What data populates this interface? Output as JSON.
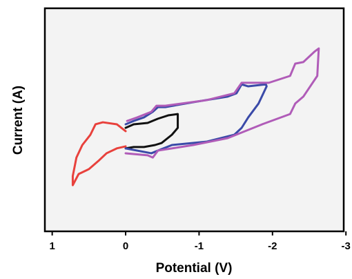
{
  "chart_data": {
    "type": "line",
    "xlabel": "Potential (V)",
    "ylabel": "Current (A)",
    "xlim": [
      1.1,
      -2.97
    ],
    "xticks": [
      1,
      0,
      -1,
      -2,
      -3
    ],
    "ylim": [
      0,
      100
    ],
    "series": [
      {
        "color": "#e8413c",
        "x": [
          0,
          0.12,
          0.31,
          0.41,
          0.48,
          0.59,
          0.67,
          0.72,
          0.72,
          0.64,
          0.5,
          0.36,
          0.26,
          0.12,
          0
        ],
        "values": [
          44.9,
          48.0,
          48.9,
          48.0,
          43.3,
          38.7,
          33.1,
          24.8,
          20.7,
          25.7,
          27.9,
          31.9,
          35.0,
          37.2,
          38.1
        ]
      },
      {
        "color": "#111111",
        "x": [
          0,
          -0.11,
          -0.3,
          -0.44,
          -0.58,
          -0.71,
          -0.71,
          -0.63,
          -0.49,
          -0.4,
          -0.25,
          -0.11,
          0
        ],
        "values": [
          46.4,
          48.0,
          48.6,
          50.5,
          52.0,
          52.6,
          46.4,
          43.3,
          39.6,
          38.7,
          37.8,
          37.8,
          37.2
        ]
      },
      {
        "color": "#3a4aa8",
        "x": [
          0,
          -0.35,
          -0.44,
          -0.63,
          -1.1,
          -1.48,
          -1.58,
          -1.67,
          -1.81,
          -1.92,
          -1.91,
          -1.67,
          -1.58,
          -1.51,
          -1.39,
          -0.92,
          -0.54,
          -0.44,
          -0.37,
          -0.25,
          -0.11,
          0
        ],
        "values": [
          37.2,
          35.0,
          36.2,
          38.7,
          40.2,
          43.3,
          46.4,
          51.1,
          57.3,
          65.0,
          65.9,
          65.0,
          65.9,
          61.9,
          60.4,
          57.9,
          55.7,
          55.7,
          53.6,
          51.1,
          49.5,
          48.0
        ]
      },
      {
        "color": "#b05cb8",
        "x": [
          0,
          -0.3,
          -0.37,
          -0.44,
          -0.92,
          -1.39,
          -1.86,
          -2.24,
          -2.31,
          -2.42,
          -2.61,
          -2.63,
          -2.57,
          -2.42,
          -2.31,
          -2.24,
          -1.95,
          -1.58,
          -1.48,
          -1.1,
          -0.54,
          -0.42,
          -0.35,
          -0.16,
          -0.02
        ],
        "values": [
          35.0,
          34.1,
          33.1,
          36.2,
          38.7,
          41.8,
          48.0,
          52.6,
          57.3,
          60.4,
          69.7,
          82.0,
          80.5,
          75.9,
          75.2,
          69.7,
          66.6,
          66.6,
          61.9,
          58.8,
          56.3,
          56.3,
          53.6,
          51.1,
          49.5
        ]
      }
    ]
  }
}
